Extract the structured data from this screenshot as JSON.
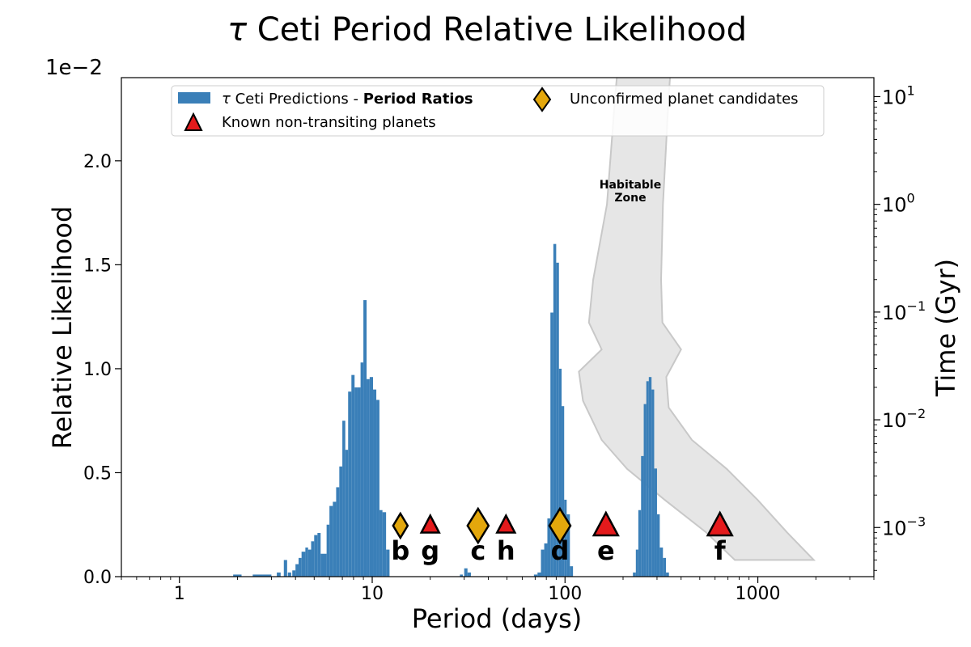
{
  "chart_data": {
    "type": "bar",
    "title": "τ Ceti Period Relative Likelihood",
    "title_symbol": "τ",
    "title_rest": " Ceti Period Relative Likelihood",
    "xlabel": "Period (days)",
    "ylabel": "Relative Likelihood",
    "y2label": "Time (Gyr)",
    "xscale": "log",
    "xlim": [
      0.5,
      4000
    ],
    "ylim": [
      0,
      0.024
    ],
    "y_multiplier": "1e−2",
    "xticks": [
      {
        "value": 1,
        "label": "1"
      },
      {
        "value": 10,
        "label": "10"
      },
      {
        "value": 100,
        "label": "100"
      },
      {
        "value": 1000,
        "label": "1000"
      }
    ],
    "yticks": [
      {
        "value": 0.0,
        "label": "0.0"
      },
      {
        "value": 0.005,
        "label": "0.5"
      },
      {
        "value": 0.01,
        "label": "1.0"
      },
      {
        "value": 0.015,
        "label": "1.5"
      },
      {
        "value": 0.02,
        "label": "2.0"
      }
    ],
    "y2scale": "log",
    "y2lim": [
      0.00035,
      15
    ],
    "y2ticks": [
      {
        "value": 0.001,
        "base": "10",
        "exp": "−3"
      },
      {
        "value": 0.01,
        "base": "10",
        "exp": "−2"
      },
      {
        "value": 0.1,
        "base": "10",
        "exp": "−1"
      },
      {
        "value": 1,
        "base": "10",
        "exp": "0"
      },
      {
        "value": 10,
        "base": "10",
        "exp": "1"
      }
    ],
    "histogram": {
      "name": "τ Ceti Predictions - Period Ratios",
      "color": "#3a7fb8",
      "bins": [
        [
          1.9,
          2.1,
          0.0001
        ],
        [
          2.4,
          2.7,
          0.0001
        ],
        [
          2.7,
          3.0,
          0.0001
        ],
        [
          3.2,
          3.35,
          0.0002
        ],
        [
          3.48,
          3.62,
          0.0008
        ],
        [
          3.65,
          3.8,
          0.0002
        ],
        [
          3.85,
          4.0,
          0.0003
        ],
        [
          4.0,
          4.15,
          0.0006
        ],
        [
          4.15,
          4.3,
          0.0009
        ],
        [
          4.3,
          4.5,
          0.0012
        ],
        [
          4.5,
          4.65,
          0.0014
        ],
        [
          4.65,
          4.82,
          0.0013
        ],
        [
          4.82,
          5.0,
          0.0017
        ],
        [
          5.0,
          5.2,
          0.002
        ],
        [
          5.2,
          5.4,
          0.0021
        ],
        [
          5.4,
          5.6,
          0.0011
        ],
        [
          5.6,
          5.8,
          0.0011
        ],
        [
          5.8,
          6.0,
          0.0025
        ],
        [
          6.0,
          6.25,
          0.0034
        ],
        [
          6.25,
          6.5,
          0.0036
        ],
        [
          6.5,
          6.75,
          0.0043
        ],
        [
          6.75,
          7.0,
          0.0053
        ],
        [
          7.0,
          7.25,
          0.0075
        ],
        [
          7.25,
          7.5,
          0.0061
        ],
        [
          7.5,
          7.8,
          0.0089
        ],
        [
          7.8,
          8.1,
          0.0097
        ],
        [
          8.1,
          8.4,
          0.0091
        ],
        [
          8.4,
          8.7,
          0.0091
        ],
        [
          8.7,
          9.0,
          0.0103
        ],
        [
          9.0,
          9.35,
          0.0133
        ],
        [
          9.35,
          9.7,
          0.0095
        ],
        [
          9.7,
          10.1,
          0.0096
        ],
        [
          10.1,
          10.5,
          0.009
        ],
        [
          10.5,
          10.9,
          0.0085
        ],
        [
          10.9,
          11.3,
          0.0032
        ],
        [
          11.3,
          11.8,
          0.0031
        ],
        [
          11.8,
          12.3,
          0.0013
        ],
        [
          28.5,
          29.5,
          0.0001
        ],
        [
          30.0,
          31.2,
          0.0004
        ],
        [
          31.2,
          32.5,
          0.0002
        ],
        [
          69,
          72,
          0.0001
        ],
        [
          72,
          75,
          0.0002
        ],
        [
          75,
          78,
          0.0013
        ],
        [
          78,
          81,
          0.0016
        ],
        [
          81,
          84,
          0.0028
        ],
        [
          84,
          87,
          0.0127
        ],
        [
          87,
          90,
          0.016
        ],
        [
          90,
          93,
          0.0151
        ],
        [
          93,
          96,
          0.01
        ],
        [
          96,
          99,
          0.0082
        ],
        [
          99,
          102,
          0.0037
        ],
        [
          102,
          106,
          0.003
        ],
        [
          106,
          110,
          0.0005
        ],
        [
          225,
          233,
          0.0002
        ],
        [
          233,
          240,
          0.0013
        ],
        [
          240,
          248,
          0.0032
        ],
        [
          248,
          256,
          0.0058
        ],
        [
          256,
          264,
          0.0083
        ],
        [
          264,
          272,
          0.0094
        ],
        [
          272,
          281,
          0.0096
        ],
        [
          281,
          290,
          0.009
        ],
        [
          290,
          300,
          0.0052
        ],
        [
          300,
          310,
          0.003
        ],
        [
          310,
          322,
          0.0014
        ],
        [
          322,
          334,
          0.0009
        ],
        [
          334,
          346,
          0.0002
        ]
      ]
    },
    "markers": [
      {
        "letter": "b",
        "period": 14.0,
        "kind": "diamond",
        "size": "small"
      },
      {
        "letter": "g",
        "period": 20.0,
        "kind": "triangle",
        "size": "small"
      },
      {
        "letter": "c",
        "period": 35.4,
        "kind": "diamond",
        "size": "large"
      },
      {
        "letter": "h",
        "period": 49.4,
        "kind": "triangle",
        "size": "small"
      },
      {
        "letter": "d",
        "period": 94.1,
        "kind": "diamond",
        "size": "large"
      },
      {
        "letter": "e",
        "period": 163.0,
        "kind": "triangle",
        "size": "large"
      },
      {
        "letter": "f",
        "period": 636.0,
        "kind": "triangle",
        "size": "large"
      }
    ],
    "habitable_zone": {
      "label_line1": "Habitable",
      "label_line2": "Zone",
      "fill": "#e6e6e6",
      "stroke": "#c8c8c8",
      "inner_boundary": [
        [
          192,
          30
        ],
        [
          182,
          10
        ],
        [
          165,
          1.0
        ],
        [
          140,
          0.2
        ],
        [
          133,
          0.08
        ],
        [
          155,
          0.045
        ],
        [
          118,
          0.028
        ],
        [
          124,
          0.015
        ],
        [
          155,
          0.0065
        ],
        [
          210,
          0.0035
        ],
        [
          330,
          0.0018
        ],
        [
          540,
          0.0009
        ],
        [
          760,
          0.0005
        ]
      ],
      "outer_boundary": [
        [
          1950,
          0.0005
        ],
        [
          1420,
          0.0009
        ],
        [
          1000,
          0.0018
        ],
        [
          690,
          0.0035
        ],
        [
          455,
          0.0065
        ],
        [
          345,
          0.013
        ],
        [
          335,
          0.025
        ],
        [
          400,
          0.045
        ],
        [
          320,
          0.08
        ],
        [
          315,
          0.2
        ],
        [
          322,
          1.0
        ],
        [
          345,
          10
        ],
        [
          360,
          30
        ]
      ]
    },
    "legend": {
      "placement": "top",
      "hist_label_prefix": "τ",
      "hist_label_mid": " Ceti Predictions - ",
      "hist_label_bold": "Period Ratios",
      "diamond_label": "Unconfirmed planet candidates",
      "triangle_label": "Known non-transiting planets"
    },
    "colors": {
      "bar": "#3a7fb8",
      "diamond": "#e3a70c",
      "triangle": "#e41a1c",
      "marker_edge": "#000000"
    }
  }
}
